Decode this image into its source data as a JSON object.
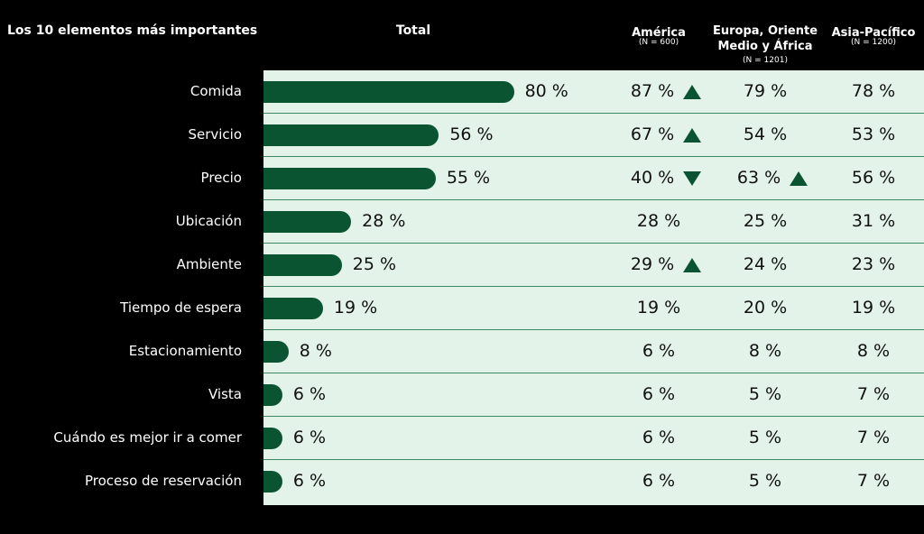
{
  "header": {
    "title": "Los 10 elementos más importantes",
    "total": "Total",
    "regions": [
      {
        "name": "América",
        "n": "(N = 600)"
      },
      {
        "name": "Europa, Oriente Medio y África",
        "n": "(N = 1201)"
      },
      {
        "name": "Asia-Pacífico",
        "n": "(N = 1200)"
      }
    ]
  },
  "rows": [
    {
      "label": "Comida",
      "total": {
        "value": 80,
        "label": "80 %"
      },
      "regions": [
        {
          "text": "87 %",
          "trend": "up"
        },
        {
          "text": "79 %"
        },
        {
          "text": "78 %"
        }
      ]
    },
    {
      "label": "Servicio",
      "total": {
        "value": 56,
        "label": "56 %"
      },
      "regions": [
        {
          "text": "67 %",
          "trend": "up"
        },
        {
          "text": "54 %"
        },
        {
          "text": "53 %"
        }
      ]
    },
    {
      "label": "Precio",
      "total": {
        "value": 55,
        "label": "55 %"
      },
      "regions": [
        {
          "text": "40 %",
          "trend": "down"
        },
        {
          "text": "63 %",
          "trend": "up"
        },
        {
          "text": "56 %"
        }
      ]
    },
    {
      "label": "Ubicación",
      "total": {
        "value": 28,
        "label": "28 %"
      },
      "regions": [
        {
          "text": "28 %"
        },
        {
          "text": "25 %"
        },
        {
          "text": "31 %"
        }
      ]
    },
    {
      "label": "Ambiente",
      "total": {
        "value": 25,
        "label": "25 %"
      },
      "regions": [
        {
          "text": "29 %",
          "trend": "up"
        },
        {
          "text": "24 %"
        },
        {
          "text": "23 %"
        }
      ]
    },
    {
      "label": "Tiempo de espera",
      "total": {
        "value": 19,
        "label": "19 %"
      },
      "regions": [
        {
          "text": "19 %"
        },
        {
          "text": "20 %"
        },
        {
          "text": "19 %"
        }
      ]
    },
    {
      "label": "Estacionamiento",
      "total": {
        "value": 8,
        "label": "8 %"
      },
      "regions": [
        {
          "text": "6 %"
        },
        {
          "text": "8 %"
        },
        {
          "text": "8 %"
        }
      ]
    },
    {
      "label": "Vista",
      "total": {
        "value": 6,
        "label": "6 %"
      },
      "regions": [
        {
          "text": "6 %"
        },
        {
          "text": "5 %"
        },
        {
          "text": "7 %"
        }
      ]
    },
    {
      "label": "Cuándo es mejor ir a comer",
      "total": {
        "value": 6,
        "label": "6 %"
      },
      "regions": [
        {
          "text": "6 %"
        },
        {
          "text": "5 %"
        },
        {
          "text": "7 %"
        }
      ]
    },
    {
      "label": "Proceso de reservación",
      "total": {
        "value": 6,
        "label": "6 %"
      },
      "regions": [
        {
          "text": "6 %"
        },
        {
          "text": "5 %"
        },
        {
          "text": "7 %"
        }
      ]
    }
  ]
}
